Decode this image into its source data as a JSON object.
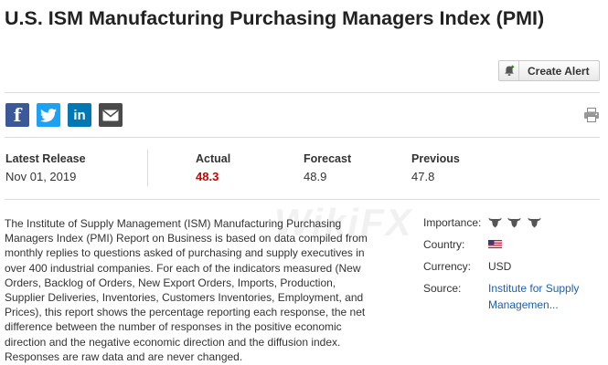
{
  "page": {
    "title": "U.S. ISM Manufacturing Purchasing Managers Index (PMI)"
  },
  "toolbar": {
    "create_alert_label": "Create Alert"
  },
  "share": {
    "facebook_glyph": "f",
    "linkedin_glyph": "in"
  },
  "release": {
    "latest_label": "Latest Release",
    "latest_value": "Nov 01, 2019",
    "actual_label": "Actual",
    "actual_value": "48.3",
    "forecast_label": "Forecast",
    "forecast_value": "48.9",
    "previous_label": "Previous",
    "previous_value": "47.8"
  },
  "description": "The Institute of Supply Management (ISM) Manufacturing Purchasing Managers Index (PMI) Report on Business is based on data compiled from monthly replies to questions asked of purchasing and supply executives in over 400 industrial companies. For each of the indicators measured (New Orders, Backlog of Orders, New Export Orders, Imports, Production, Supplier Deliveries, Inventories, Customers Inventories, Employment, and Prices), this report shows the percentage reporting each response, the net difference between the number of responses in the positive economic direction and the negative economic direction and the diffusion index. Responses are raw data and are never changed.",
  "details": {
    "importance_label": "Importance:",
    "importance_level": 3,
    "country_label": "Country:",
    "country_flag_icon": "us-flag-icon",
    "currency_label": "Currency:",
    "currency_value": "USD",
    "source_label": "Source:",
    "source_value": "Institute for Supply Managemen..."
  },
  "watermark": "WikiFX",
  "colors": {
    "actual": "#cc0000",
    "link": "#1f5fa8",
    "facebook": "#3b5998",
    "twitter": "#1da1f2",
    "linkedin": "#0077b5",
    "email": "#4a4a4a"
  }
}
